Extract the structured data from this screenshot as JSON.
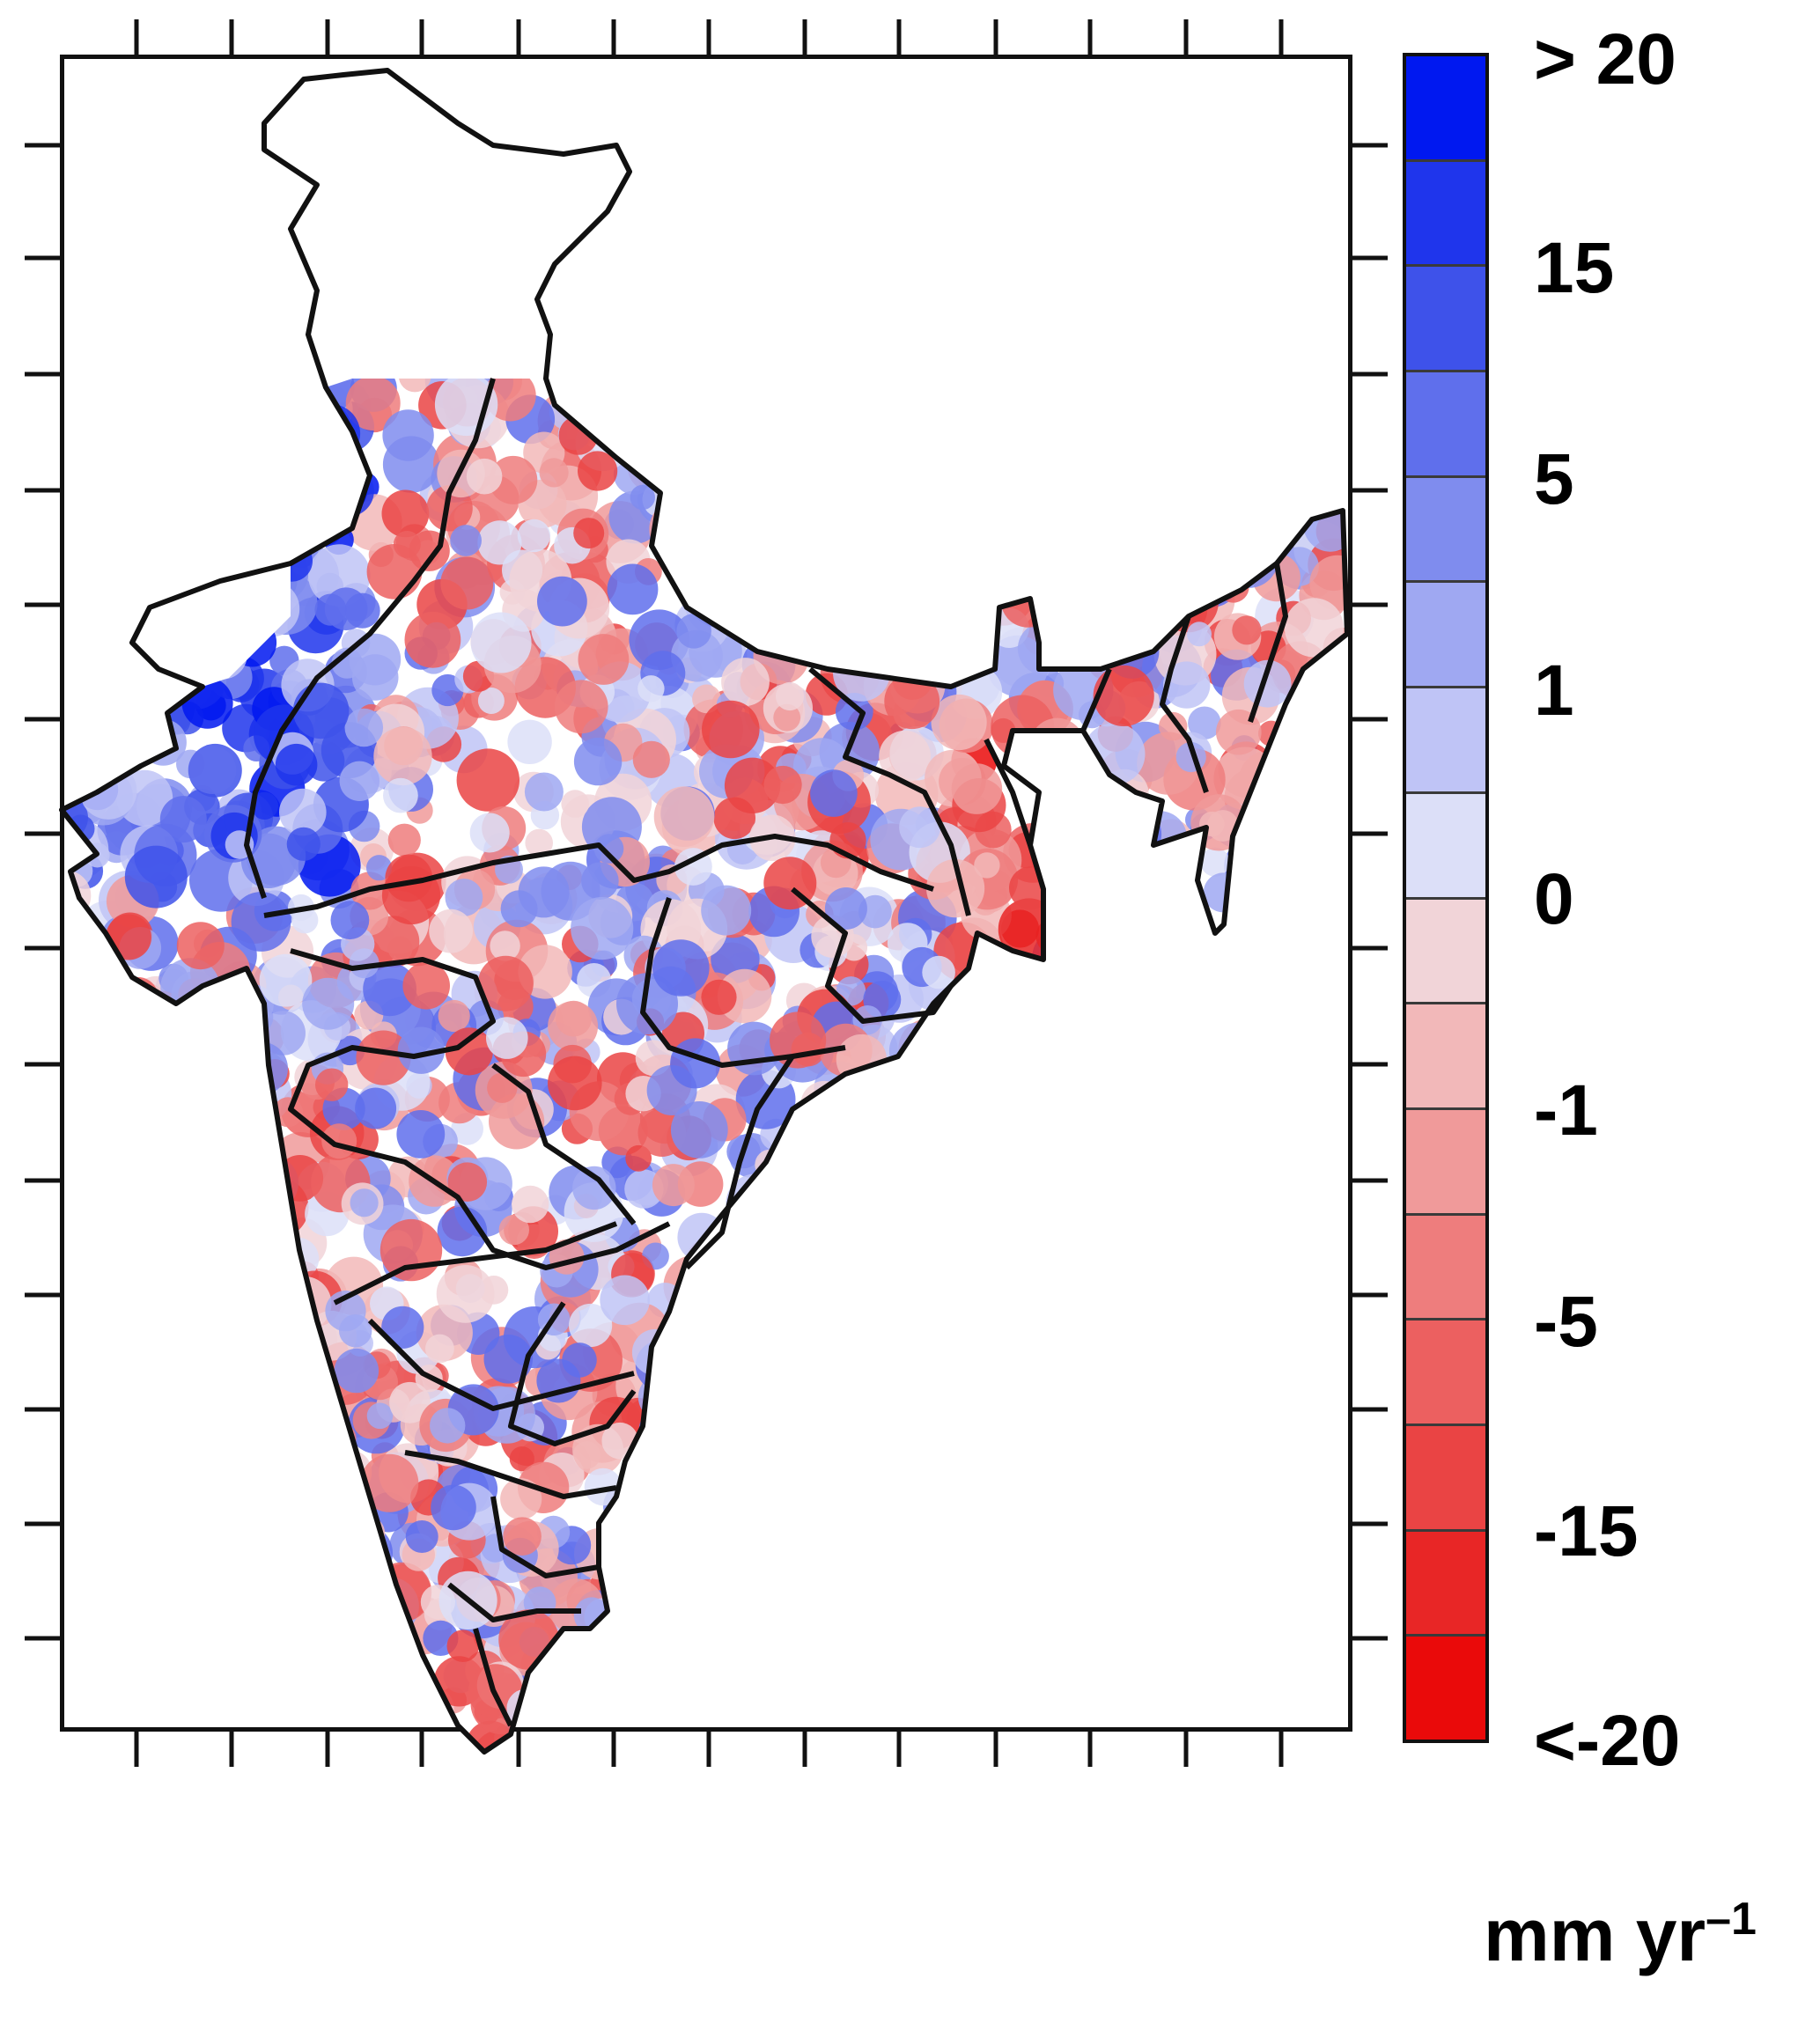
{
  "colorbar": {
    "units": "mm yr",
    "units_exponent": "–1",
    "labels": [
      "> 20",
      "15",
      "5",
      "1",
      "0",
      "-1",
      "-5",
      "-15",
      "<-20"
    ],
    "colors": [
      "#0018f0",
      "#1f35ec",
      "#3e52ea",
      "#5f6fec",
      "#7f8cee",
      "#9fa8f2",
      "#bfc4f6",
      "#dcdff8",
      "#f1d4d8",
      "#f2b8b9",
      "#f09a9a",
      "#ee7d7d",
      "#ec6060",
      "#ea4444",
      "#e82626",
      "#ea0a0a"
    ]
  },
  "map": {
    "region_fill_positive": "#7f8cee",
    "region_fill_negative": "#f09a9a",
    "boundary_color": "#111111"
  }
}
